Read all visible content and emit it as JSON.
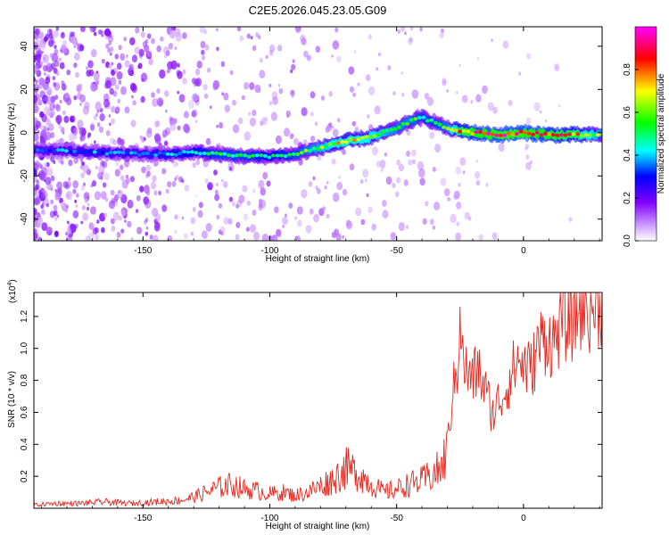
{
  "title": "C2E5.2026.045.23.05.G09",
  "chart_data": [
    {
      "type": "heatmap",
      "xlabel": "Height of straight line (km)",
      "ylabel": "Frequency (Hz)",
      "xlim": [
        -193,
        31
      ],
      "ylim": [
        -50,
        49
      ],
      "xticks": [
        -150,
        -100,
        -50,
        0
      ],
      "xtick_labels": [
        "-150",
        "-100",
        "-50",
        "0"
      ],
      "yticks": [
        -40,
        -20,
        0,
        20,
        40
      ],
      "ytick_labels": [
        "-40",
        "-20",
        "0",
        "20",
        "40"
      ],
      "colorbar": {
        "label": "Normalized spectral amplitude",
        "range": [
          0,
          1
        ],
        "ticks": [
          0.0,
          0.2,
          0.4,
          0.6,
          0.8
        ],
        "tick_labels": [
          "0.0",
          "0.2",
          "0.4",
          "0.6",
          "0.8"
        ],
        "colormap": [
          "#ffffff",
          "#8000ff",
          "#0000ff",
          "#00ffff",
          "#00ff00",
          "#ffff00",
          "#ff0000",
          "#ff00ff"
        ]
      },
      "ridge": {
        "x": [
          -193,
          -170,
          -150,
          -140,
          -130,
          -120,
          -110,
          -100,
          -90,
          -80,
          -70,
          -60,
          -50,
          -45,
          -40,
          -35,
          -30,
          -25,
          -20,
          -10,
          0,
          10,
          20,
          31
        ],
        "frequency": [
          -8,
          -9,
          -10,
          -10,
          -9,
          -10,
          -11,
          -11,
          -10,
          -7,
          -4,
          -2,
          2,
          5,
          7,
          5,
          2,
          1,
          0,
          -1,
          0,
          -1,
          -1,
          -1
        ],
        "amplitude": [
          0.35,
          0.4,
          0.4,
          0.45,
          0.5,
          0.55,
          0.55,
          0.5,
          0.55,
          0.65,
          0.75,
          0.7,
          0.6,
          0.6,
          0.55,
          0.55,
          0.6,
          0.85,
          0.9,
          0.95,
          0.95,
          0.9,
          0.85,
          0.6
        ]
      }
    },
    {
      "type": "line",
      "xlabel": "Height of straight line (km)",
      "ylabel": "SNR (10 * v/v)",
      "y_multiplier": "(x10",
      "y_exponent": "4",
      "xlim": [
        -193,
        31
      ],
      "ylim": [
        0,
        1.35
      ],
      "xticks": [
        -150,
        -100,
        -50,
        0
      ],
      "xtick_labels": [
        "-150",
        "-100",
        "-50",
        "0"
      ],
      "yticks": [
        0.2,
        0.4,
        0.6,
        0.8,
        1.0,
        1.2
      ],
      "ytick_labels": [
        "0.2",
        "0.4",
        "0.6",
        "0.8",
        "1.0",
        "1.2"
      ],
      "series": [
        {
          "color": "#e8261e",
          "x": [
            -193,
            -185,
            -175,
            -165,
            -155,
            -145,
            -135,
            -130,
            -125,
            -120,
            -115,
            -110,
            -105,
            -100,
            -95,
            -90,
            -85,
            -80,
            -75,
            -70,
            -65,
            -60,
            -55,
            -50,
            -45,
            -40,
            -35,
            -32,
            -30,
            -28,
            -26,
            -25,
            -24,
            -22,
            -20,
            -18,
            -15,
            -12,
            -10,
            -8,
            -5,
            -2,
            0,
            3,
            6,
            9,
            12,
            15,
            18,
            21,
            24,
            27,
            31
          ],
          "y": [
            0.02,
            0.03,
            0.03,
            0.04,
            0.03,
            0.04,
            0.05,
            0.07,
            0.1,
            0.13,
            0.15,
            0.12,
            0.11,
            0.09,
            0.1,
            0.08,
            0.1,
            0.14,
            0.18,
            0.25,
            0.22,
            0.15,
            0.1,
            0.12,
            0.15,
            0.17,
            0.22,
            0.25,
            0.4,
            0.72,
            0.9,
            1.32,
            0.95,
            0.85,
            0.82,
            0.9,
            0.75,
            0.6,
            0.68,
            0.72,
            0.85,
            0.95,
            0.92,
            0.88,
            1.05,
            1.1,
            1.05,
            1.2,
            1.18,
            1.25,
            1.3,
            1.28,
            1.33
          ]
        }
      ]
    }
  ]
}
